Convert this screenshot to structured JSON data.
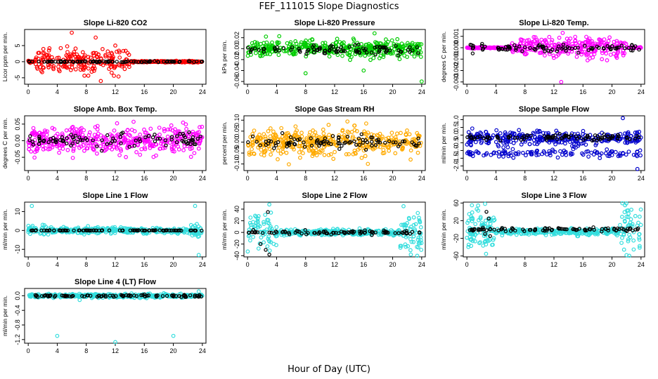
{
  "figure": {
    "title": "FEF_111015  Slope Diagnostics",
    "xlabel": "Hour of Day (UTC)"
  },
  "chart_data": [
    {
      "type": "scatter",
      "title": "Slope Li-820 CO2",
      "ylabel": "Licor ppm per min.",
      "color": "#ff0000",
      "xlim": [
        -0.5,
        24.5
      ],
      "xticks": [
        0,
        4,
        8,
        12,
        16,
        20,
        24
      ],
      "ylim": [
        -7,
        10
      ],
      "yticks": [
        -5,
        0,
        5
      ],
      "ytick_labels": [
        "-5",
        "0",
        "5"
      ],
      "pattern": {
        "center": 0,
        "spread": 3.0,
        "active": [
          1,
          14
        ],
        "outliers": [
          [
            6,
            9
          ],
          [
            9.3,
            7.5
          ],
          [
            10,
            -6
          ],
          [
            12,
            5
          ]
        ]
      },
      "black": {
        "center": 0,
        "spread": 0.2
      }
    },
    {
      "type": "scatter",
      "title": "Slope Li-820 Pressure",
      "ylabel": "kPa per min.",
      "color": "#00cc00",
      "xlim": [
        -0.5,
        24.5
      ],
      "xticks": [
        0,
        4,
        8,
        12,
        16,
        20,
        24
      ],
      "ylim": [
        -0.065,
        0.035
      ],
      "yticks": [
        -0.06,
        -0.04,
        -0.02,
        0.0,
        0.02
      ],
      "ytick_labels": [
        "-0.06",
        "-0.04",
        "-0.02",
        "0.00",
        "0.02"
      ],
      "pattern": {
        "center": 0.0,
        "spread": 0.012,
        "active": [
          0,
          24
        ],
        "outliers": [
          [
            8,
            -0.045
          ],
          [
            16,
            -0.04
          ],
          [
            24,
            -0.06
          ],
          [
            17.5,
            0.028
          ]
        ]
      },
      "black": {
        "center": -0.002,
        "spread": 0.008
      }
    },
    {
      "type": "scatter",
      "title": "Slope Li-820 Temp.",
      "ylabel": "degrees C per min.",
      "color": "#ff00ff",
      "xlim": [
        -0.5,
        24.5
      ],
      "xticks": [
        0,
        4,
        8,
        12,
        16,
        20,
        24
      ],
      "ylim": [
        -0.0032,
        0.0016
      ],
      "yticks": [
        -0.003,
        -0.002,
        -0.001,
        0.0,
        0.001
      ],
      "ytick_labels": [
        "-0.003",
        "-0.002",
        "-0.001",
        "0.000",
        "0.001"
      ],
      "pattern": {
        "center": 0.0,
        "spread": 0.0007,
        "active": [
          6,
          22
        ],
        "outliers": [
          [
            13.2,
            0.0013
          ],
          [
            13,
            -0.003
          ]
        ]
      },
      "black": {
        "center": 0.0,
        "spread": 0.0003
      }
    },
    {
      "type": "scatter",
      "title": "Slope Amb. Box Temp.",
      "ylabel": "degrees C per min.",
      "color": "#ff00ff",
      "xlim": [
        -0.5,
        24.5
      ],
      "xticks": [
        0,
        4,
        8,
        12,
        16,
        20,
        24
      ],
      "ylim": [
        -0.09,
        0.075
      ],
      "yticks": [
        -0.05,
        0.0,
        0.05
      ],
      "ytick_labels": [
        "-0.05",
        "0.00",
        "0.05"
      ],
      "pattern": {
        "center": 0.0,
        "spread": 0.035,
        "active": [
          0,
          24
        ],
        "outliers": []
      },
      "black": {
        "center": 0.0,
        "spread": 0.02
      }
    },
    {
      "type": "scatter",
      "title": "Slope Gas Stream RH",
      "ylabel": "percent per min.",
      "color": "#ffaa00",
      "xlim": [
        -0.5,
        24.5
      ],
      "xticks": [
        0,
        4,
        8,
        12,
        16,
        20,
        24
      ],
      "ylim": [
        -0.13,
        0.12
      ],
      "yticks": [
        -0.1,
        -0.05,
        0.0,
        0.05,
        0.1
      ],
      "ytick_labels": [
        "-0.10",
        "-0.05",
        "0.00",
        "0.05",
        "0.10"
      ],
      "pattern": {
        "center": 0.0,
        "spread": 0.05,
        "active": [
          0,
          24
        ],
        "outliers": []
      },
      "black": {
        "center": 0.0,
        "spread": 0.03
      }
    },
    {
      "type": "scatter",
      "title": "Slope Sample Flow",
      "ylabel": "ml/min per min.",
      "color": "#0000cc",
      "xlim": [
        -0.5,
        24.5
      ],
      "xticks": [
        0,
        4,
        8,
        12,
        16,
        20,
        24
      ],
      "ylim": [
        -2.3,
        1.25
      ],
      "yticks": [
        -2.0,
        -1.5,
        -1.0,
        -0.5,
        0.0,
        0.5,
        1.0
      ],
      "ytick_labels": [
        "-2.0",
        "-1.5",
        "-1.0",
        "-0.5",
        "0.0",
        "0.5",
        "1.0"
      ],
      "pattern": {
        "center": -0.2,
        "spread": 0.35,
        "active": [
          0,
          24
        ],
        "band2": -1.2,
        "outliers": [
          [
            21.5,
            1.1
          ],
          [
            23.5,
            -2.2
          ]
        ]
      },
      "black": {
        "center": -0.15,
        "spread": 0.2
      }
    },
    {
      "type": "scatter",
      "title": "Slope Line 1 Flow",
      "ylabel": "ml/min per min.",
      "color": "#33dddd",
      "xlim": [
        -0.5,
        24.5
      ],
      "xticks": [
        0,
        4,
        8,
        12,
        16,
        20,
        24
      ],
      "ylim": [
        -14,
        15
      ],
      "yticks": [
        -10,
        0,
        10
      ],
      "ytick_labels": [
        "-10",
        "0",
        "10"
      ],
      "pattern": {
        "center": 0,
        "spread": 1.2,
        "active": [
          0,
          24
        ],
        "edges": [
          [
            0,
            3,
            6
          ],
          [
            22,
            24,
            8
          ]
        ],
        "outliers": [
          [
            0.5,
            13
          ],
          [
            23,
            13
          ],
          [
            23.5,
            -13
          ]
        ]
      },
      "black": {
        "center": 0,
        "spread": 0.1
      }
    },
    {
      "type": "scatter",
      "title": "Slope Line 2 Flow",
      "ylabel": "ml/min per min.",
      "color": "#33dddd",
      "xlim": [
        -0.5,
        24.5
      ],
      "xticks": [
        0,
        4,
        8,
        12,
        16,
        20,
        24
      ],
      "ylim": [
        -42,
        52
      ],
      "yticks": [
        -40,
        -20,
        0,
        20,
        40
      ],
      "ytick_labels": [
        "-40",
        "-20",
        "0",
        "20",
        "40"
      ],
      "pattern": {
        "center": 0,
        "spread": 4,
        "active": [
          0,
          24
        ],
        "edges": [
          [
            0,
            4,
            18
          ],
          [
            21,
            24,
            18
          ]
        ],
        "outliers": [
          [
            3,
            48
          ],
          [
            21.5,
            45
          ],
          [
            22.5,
            -38
          ]
        ]
      },
      "black": {
        "center": 0,
        "spread": 3,
        "extra": [
          [
            1.8,
            -20
          ],
          [
            2.5,
            -30
          ],
          [
            3,
            -38
          ],
          [
            2.8,
            35
          ]
        ]
      }
    },
    {
      "type": "scatter",
      "title": "Slope Line 3 Flow",
      "ylabel": "ml/min per min.",
      "color": "#33dddd",
      "xlim": [
        -0.5,
        24.5
      ],
      "xticks": [
        0,
        4,
        8,
        12,
        16,
        20,
        24
      ],
      "ylim": [
        -62,
        62
      ],
      "yticks": [
        -60,
        -20,
        20,
        60
      ],
      "ytick_labels": [
        "-60",
        "-20",
        "20",
        "60"
      ],
      "pattern": {
        "center": -5,
        "spread": 6,
        "active": [
          0,
          24
        ],
        "edges": [
          [
            0,
            4,
            20
          ],
          [
            21,
            24,
            22
          ]
        ],
        "outliers": [
          [
            2.5,
            58
          ],
          [
            21.8,
            55
          ],
          [
            22,
            -58
          ]
        ]
      },
      "black": {
        "center": 0,
        "spread": 4,
        "extra": [
          [
            2.7,
            40
          ],
          [
            3,
            25
          ],
          [
            2.5,
            -10
          ],
          [
            3.2,
            -15
          ]
        ]
      }
    },
    {
      "type": "scatter",
      "title": "Slope Line 4 (LT) Flow",
      "ylabel": "ml/min per min.",
      "color": "#33dddd",
      "xlim": [
        -0.5,
        24.5
      ],
      "xticks": [
        0,
        4,
        8,
        12,
        16,
        20,
        24
      ],
      "ylim": [
        -1.3,
        0.2
      ],
      "yticks": [
        -1.2,
        -0.8,
        -0.4,
        0.0
      ],
      "ytick_labels": [
        "-1.2",
        "-0.8",
        "-0.4",
        "0.0"
      ],
      "pattern": {
        "center": 0.0,
        "spread": 0.04,
        "active": [
          0,
          24
        ],
        "outliers": [
          [
            4,
            -1.1
          ],
          [
            12,
            -1.27
          ],
          [
            20,
            -1.1
          ],
          [
            23.5,
            0.12
          ]
        ]
      },
      "black": {
        "center": 0.0,
        "spread": 0.03
      }
    }
  ]
}
